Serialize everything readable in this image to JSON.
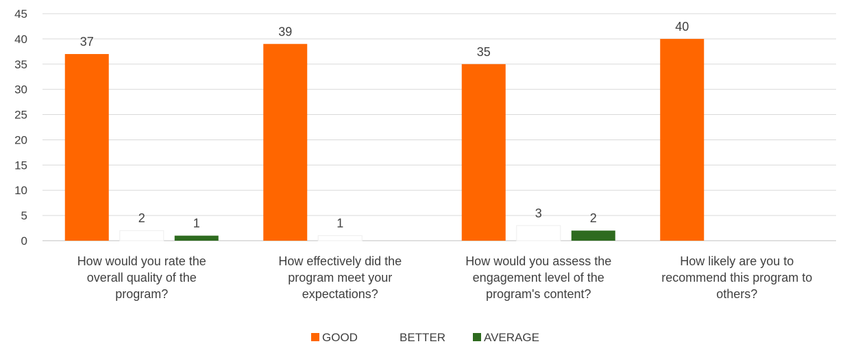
{
  "chart_data": {
    "type": "bar",
    "categories": [
      [
        "How would you rate the",
        "overall quality of the",
        "program?"
      ],
      [
        "How effectively did the",
        "program meet your",
        "expectations?"
      ],
      [
        "How would you assess the",
        "engagement level of the",
        "program's content?"
      ],
      [
        "How likely are you to",
        "recommend this program to",
        "others?"
      ]
    ],
    "series": [
      {
        "name": "GOOD",
        "color": "#ff6600",
        "values": [
          37,
          39,
          35,
          40
        ]
      },
      {
        "name": "BETTER",
        "color": "#ffffff",
        "values": [
          2,
          1,
          3,
          null
        ]
      },
      {
        "name": "AVERAGE",
        "color": "#2e6b1f",
        "values": [
          1,
          null,
          2,
          null
        ]
      }
    ],
    "ylim": [
      0,
      45
    ],
    "yticks": [
      0,
      5,
      10,
      15,
      20,
      25,
      30,
      35,
      40,
      45
    ],
    "grid": true,
    "legend": "bottom",
    "data_labels": true
  }
}
